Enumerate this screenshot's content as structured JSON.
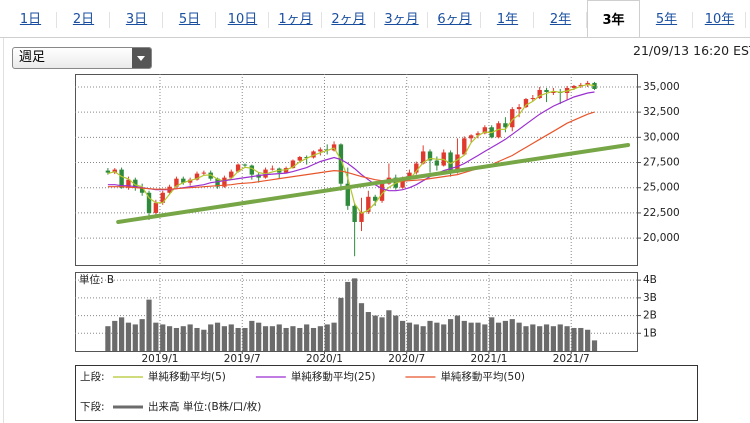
{
  "tabs": [
    "1日",
    "2日",
    "3日",
    "5日",
    "10日",
    "1ヶ月",
    "2ヶ月",
    "3ヶ月",
    "6ヶ月",
    "1年",
    "2年",
    "3年",
    "5年",
    "10年"
  ],
  "active_tab": 11,
  "dropdown": "週足",
  "timestamp": "21/09/13 16:20 EST",
  "chart_data": [
    {
      "type": "candlestick",
      "legend_title": "上段:",
      "up_color": "#e03a2e",
      "down_color": "#2f8a3c",
      "candles": [
        [
          26700,
          26950,
          26300,
          26500
        ],
        [
          26500,
          26950,
          26350,
          26800
        ],
        [
          26800,
          27000,
          24900,
          25000
        ],
        [
          25000,
          26100,
          24800,
          25800
        ],
        [
          25800,
          26000,
          24700,
          25000
        ],
        [
          25000,
          25400,
          24200,
          24500
        ],
        [
          24500,
          24700,
          21800,
          22500
        ],
        [
          22500,
          23800,
          22300,
          23500
        ],
        [
          23500,
          24700,
          23300,
          24500
        ],
        [
          24500,
          25300,
          24300,
          25100
        ],
        [
          25100,
          26100,
          25000,
          25900
        ],
        [
          25900,
          26100,
          25300,
          25500
        ],
        [
          25500,
          26000,
          25200,
          25800
        ],
        [
          25800,
          26600,
          25700,
          26400
        ],
        [
          26400,
          26700,
          26200,
          26500
        ],
        [
          26500,
          26700,
          25700,
          25900
        ],
        [
          25900,
          26000,
          24900,
          25100
        ],
        [
          25100,
          26200,
          25000,
          26000
        ],
        [
          26000,
          26800,
          25900,
          26600
        ],
        [
          26600,
          27400,
          26500,
          27300
        ],
        [
          27300,
          27400,
          27000,
          27200
        ],
        [
          27200,
          27300,
          25800,
          26300
        ],
        [
          26300,
          26500,
          25500,
          26000
        ],
        [
          26000,
          27000,
          25900,
          26800
        ],
        [
          26800,
          27200,
          26700,
          26900
        ],
        [
          26900,
          27000,
          25900,
          26500
        ],
        [
          26500,
          27100,
          26400,
          26950
        ],
        [
          26950,
          27800,
          26900,
          27700
        ],
        [
          27700,
          28150,
          27600,
          28050
        ],
        [
          28050,
          28200,
          27300,
          28000
        ],
        [
          28000,
          28700,
          27900,
          28600
        ],
        [
          28600,
          29000,
          28200,
          28800
        ],
        [
          28800,
          29300,
          28300,
          28700
        ],
        [
          28700,
          29600,
          28600,
          29300
        ],
        [
          29300,
          29400,
          24700,
          25400
        ],
        [
          25400,
          27000,
          22800,
          23200
        ],
        [
          23200,
          23500,
          18200,
          21600
        ],
        [
          21600,
          24000,
          20700,
          22600
        ],
        [
          22600,
          24700,
          22400,
          24100
        ],
        [
          24100,
          24300,
          23200,
          23700
        ],
        [
          23700,
          25600,
          23500,
          25400
        ],
        [
          25400,
          27400,
          25300,
          26000
        ],
        [
          26000,
          26300,
          24800,
          25000
        ],
        [
          25000,
          26100,
          24900,
          26000
        ],
        [
          26000,
          26800,
          25800,
          26500
        ],
        [
          26500,
          27600,
          26300,
          27400
        ],
        [
          27400,
          29200,
          27300,
          28600
        ],
        [
          28600,
          28800,
          26500,
          27700
        ],
        [
          27700,
          28100,
          26700,
          27200
        ],
        [
          27200,
          28800,
          27100,
          28500
        ],
        [
          28500,
          28700,
          26100,
          26500
        ],
        [
          26500,
          29900,
          26400,
          28300
        ],
        [
          28300,
          30100,
          28200,
          29900
        ],
        [
          29900,
          30300,
          29500,
          30200
        ],
        [
          30200,
          30600,
          29900,
          30400
        ],
        [
          30400,
          31200,
          30300,
          31000
        ],
        [
          31000,
          31200,
          29900,
          30000
        ],
        [
          30000,
          31600,
          29900,
          31400
        ],
        [
          31400,
          32000,
          30500,
          31000
        ],
        [
          31000,
          33000,
          30600,
          32800
        ],
        [
          32800,
          33300,
          32000,
          33000
        ],
        [
          33000,
          33900,
          32900,
          33800
        ],
        [
          33800,
          34200,
          33600,
          33900
        ],
        [
          33900,
          35000,
          33800,
          34700
        ],
        [
          34700,
          34900,
          33500,
          34500
        ],
        [
          34500,
          34900,
          34200,
          34500
        ],
        [
          34500,
          34800,
          33300,
          34400
        ],
        [
          34400,
          35100,
          33700,
          34900
        ],
        [
          34900,
          35200,
          34700,
          35100
        ],
        [
          35100,
          35400,
          34900,
          35200
        ],
        [
          35200,
          35600,
          35000,
          35400
        ],
        [
          35400,
          35500,
          34700,
          34800
        ]
      ],
      "series": [
        {
          "name": "単純移動平均(5)",
          "color": "#b3c62c",
          "values": [
            26400,
            26600,
            26100,
            25870,
            25270,
            25100,
            24000,
            23500,
            23500,
            24370,
            25170,
            25500,
            25730,
            25900,
            26230,
            26270,
            25830,
            25670,
            25900,
            26630,
            27030,
            26930,
            26500,
            26370,
            26570,
            26730,
            26780,
            27050,
            27570,
            27920,
            28220,
            28470,
            28700,
            28930,
            27800,
            25970,
            23400,
            22470,
            22770,
            23470,
            24400,
            25030,
            25470,
            25670,
            25830,
            26630,
            27500,
            27900,
            27830,
            27800,
            27400,
            27770,
            28230,
            29470,
            30170,
            30530,
            30470,
            30800,
            30800,
            31730,
            32270,
            33200,
            33570,
            34130,
            34370,
            34570,
            34470,
            34600,
            34800,
            35070,
            35230,
            35130
          ]
        },
        {
          "name": "単純移動平均(25)",
          "color": "#9b2fd0",
          "values": [
            25300,
            25300,
            25200,
            25200,
            25100,
            25000,
            24900,
            24800,
            24800,
            24800,
            24900,
            25000,
            25100,
            25200,
            25300,
            25500,
            25600,
            25700,
            25800,
            25900,
            26000,
            26100,
            26200,
            26300,
            26350,
            26400,
            26450,
            26600,
            26800,
            27000,
            27300,
            27600,
            27800,
            28000,
            27800,
            27400,
            26900,
            26300,
            25800,
            25300,
            24900,
            24700,
            24700,
            24800,
            25000,
            25300,
            25700,
            26100,
            26400,
            26700,
            26900,
            27100,
            27400,
            27800,
            28200,
            28600,
            29000,
            29400,
            29800,
            30300,
            30800,
            31300,
            31800,
            32300,
            32700,
            33100,
            33400,
            33700,
            34000,
            34200,
            34400,
            34500
          ]
        },
        {
          "name": "単純移動平均(50)",
          "color": "#e8552c",
          "values": [
            25100,
            25100,
            25100,
            25050,
            25000,
            24950,
            24900,
            24850,
            24850,
            24850,
            24900,
            24950,
            25000,
            25050,
            25100,
            25150,
            25200,
            25250,
            25300,
            25400,
            25450,
            25500,
            25600,
            25700,
            25800,
            25900,
            26000,
            26100,
            26200,
            26300,
            26400,
            26500,
            26600,
            26700,
            26650,
            26500,
            26300,
            26100,
            25950,
            25800,
            25700,
            25650,
            25650,
            25650,
            25700,
            25750,
            25800,
            25900,
            26000,
            26100,
            26200,
            26300,
            26500,
            26700,
            26900,
            27100,
            27300,
            27600,
            27900,
            28200,
            28600,
            29000,
            29400,
            29800,
            30200,
            30600,
            31000,
            31400,
            31700,
            32000,
            32300,
            32500
          ]
        }
      ],
      "trendline": {
        "color": "#76a646",
        "x": [
          1.5,
          75.9
        ],
        "y": [
          21600,
          29240
        ]
      },
      "xlim": [
        -4.8,
        77.2
      ],
      "ylim": [
        17330,
        36285
      ],
      "yticks": [
        {
          "value": 20000,
          "label": "20,000"
        },
        {
          "value": 22500,
          "label": "22,500"
        },
        {
          "value": 25000,
          "label": "25,000"
        },
        {
          "value": 27500,
          "label": "27,500"
        },
        {
          "value": 30000,
          "label": "30,000"
        },
        {
          "value": 32500,
          "label": "32,500"
        },
        {
          "value": 35000,
          "label": "35,000"
        }
      ],
      "grid": true
    },
    {
      "type": "bar",
      "legend_title": "下段:",
      "unit_label": "単位: B",
      "series": [
        {
          "name": "出来高 単位:(B株/口/枚)",
          "color": "#6b6b6b",
          "values": [
            1.4,
            1.7,
            1.9,
            1.6,
            1.5,
            1.8,
            2.9,
            1.6,
            1.5,
            1.4,
            1.3,
            1.4,
            1.5,
            1.3,
            1.2,
            1.5,
            1.6,
            1.4,
            1.5,
            1.3,
            1.3,
            1.7,
            1.6,
            1.4,
            1.4,
            1.5,
            1.3,
            1.4,
            1.3,
            1.5,
            1.3,
            1.4,
            1.5,
            1.6,
            3.0,
            3.9,
            4.1,
            2.7,
            2.2,
            2.0,
            1.9,
            2.3,
            2.0,
            1.7,
            1.6,
            1.5,
            1.4,
            1.7,
            1.6,
            1.5,
            1.8,
            2.0,
            1.7,
            1.6,
            1.6,
            1.5,
            1.9,
            1.6,
            1.7,
            1.8,
            1.6,
            1.4,
            1.5,
            1.4,
            1.5,
            1.4,
            1.5,
            1.4,
            1.3,
            1.3,
            1.2,
            0.6
          ]
        }
      ],
      "xlim": [
        -4.8,
        77.2
      ],
      "xticks": [
        {
          "value": 7.6,
          "label": "2019/1"
        },
        {
          "value": 19.6,
          "label": "2019/7"
        },
        {
          "value": 31.6,
          "label": "2020/1"
        },
        {
          "value": 43.6,
          "label": "2020/7"
        },
        {
          "value": 55.6,
          "label": "2021/1"
        },
        {
          "value": 67.6,
          "label": "2021/7"
        }
      ],
      "ylim": [
        0,
        4.46
      ],
      "yticks": [
        {
          "value": 1,
          "label": "1B"
        },
        {
          "value": 2,
          "label": "2B"
        },
        {
          "value": 3,
          "label": "3B"
        },
        {
          "value": 4,
          "label": "4B"
        }
      ],
      "grid": true
    }
  ]
}
